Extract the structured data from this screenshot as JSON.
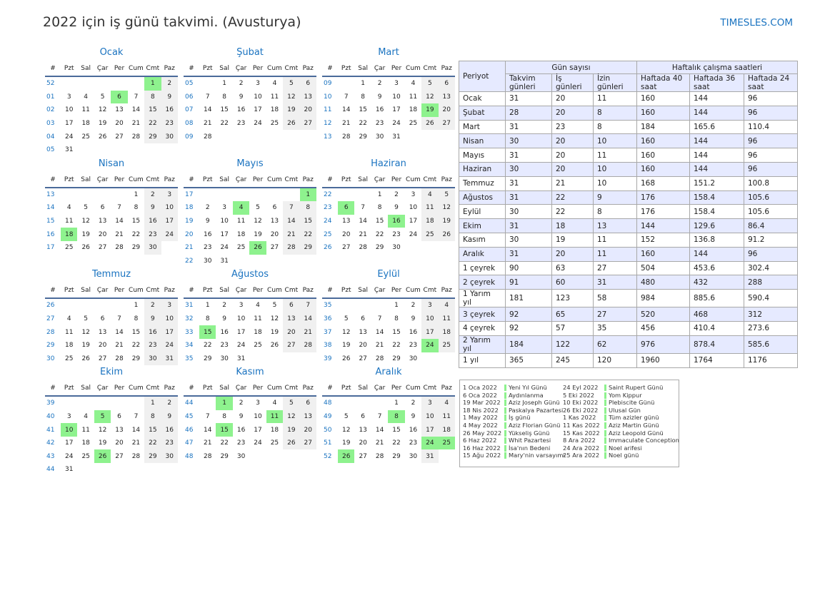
{
  "title": "2022 için iş günü takvimi. (Avusturya)",
  "site": "TIMESLES.COM",
  "colors": {
    "accent": "#1a73c0",
    "holiday": "#8ef28e",
    "weekend": "#f0f0f0",
    "table_header": "#e6eaff"
  },
  "weekday_headers": [
    "#",
    "Pzt",
    "Sal",
    "Çar",
    "Per",
    "Cum",
    "Cmt",
    "Paz"
  ],
  "months": [
    {
      "name": "Ocak",
      "holidays": [
        "1",
        "6"
      ],
      "weeks": [
        [
          "52",
          "",
          "",
          "",
          "",
          "",
          "1",
          "2"
        ],
        [
          "01",
          "3",
          "4",
          "5",
          "6",
          "7",
          "8",
          "9"
        ],
        [
          "02",
          "10",
          "11",
          "12",
          "13",
          "14",
          "15",
          "16"
        ],
        [
          "03",
          "17",
          "18",
          "19",
          "20",
          "21",
          "22",
          "23"
        ],
        [
          "04",
          "24",
          "25",
          "26",
          "27",
          "28",
          "29",
          "30"
        ],
        [
          "05",
          "31",
          "",
          "",
          "",
          "",
          "",
          ""
        ]
      ]
    },
    {
      "name": "Şubat",
      "holidays": [],
      "weeks": [
        [
          "05",
          "",
          "1",
          "2",
          "3",
          "4",
          "5",
          "6"
        ],
        [
          "06",
          "7",
          "8",
          "9",
          "10",
          "11",
          "12",
          "13"
        ],
        [
          "07",
          "14",
          "15",
          "16",
          "17",
          "18",
          "19",
          "20"
        ],
        [
          "08",
          "21",
          "22",
          "23",
          "24",
          "25",
          "26",
          "27"
        ],
        [
          "09",
          "28",
          "",
          "",
          "",
          "",
          "",
          ""
        ]
      ]
    },
    {
      "name": "Mart",
      "holidays": [
        "19"
      ],
      "weeks": [
        [
          "09",
          "",
          "1",
          "2",
          "3",
          "4",
          "5",
          "6"
        ],
        [
          "10",
          "7",
          "8",
          "9",
          "10",
          "11",
          "12",
          "13"
        ],
        [
          "11",
          "14",
          "15",
          "16",
          "17",
          "18",
          "19",
          "20"
        ],
        [
          "12",
          "21",
          "22",
          "23",
          "24",
          "25",
          "26",
          "27"
        ],
        [
          "13",
          "28",
          "29",
          "30",
          "31",
          "",
          "",
          ""
        ]
      ]
    },
    {
      "name": "Nisan",
      "holidays": [
        "18"
      ],
      "weeks": [
        [
          "13",
          "",
          "",
          "",
          "",
          "1",
          "2",
          "3"
        ],
        [
          "14",
          "4",
          "5",
          "6",
          "7",
          "8",
          "9",
          "10"
        ],
        [
          "15",
          "11",
          "12",
          "13",
          "14",
          "15",
          "16",
          "17"
        ],
        [
          "16",
          "18",
          "19",
          "20",
          "21",
          "22",
          "23",
          "24"
        ],
        [
          "17",
          "25",
          "26",
          "27",
          "28",
          "29",
          "30",
          ""
        ]
      ]
    },
    {
      "name": "Mayıs",
      "holidays": [
        "1",
        "4",
        "26"
      ],
      "weeks": [
        [
          "17",
          "",
          "",
          "",
          "",
          "",
          "",
          "1"
        ],
        [
          "18",
          "2",
          "3",
          "4",
          "5",
          "6",
          "7",
          "8"
        ],
        [
          "19",
          "9",
          "10",
          "11",
          "12",
          "13",
          "14",
          "15"
        ],
        [
          "20",
          "16",
          "17",
          "18",
          "19",
          "20",
          "21",
          "22"
        ],
        [
          "21",
          "23",
          "24",
          "25",
          "26",
          "27",
          "28",
          "29"
        ],
        [
          "22",
          "30",
          "31",
          "",
          "",
          "",
          "",
          ""
        ]
      ]
    },
    {
      "name": "Haziran",
      "holidays": [
        "6",
        "16"
      ],
      "weeks": [
        [
          "22",
          "",
          "",
          "1",
          "2",
          "3",
          "4",
          "5"
        ],
        [
          "23",
          "6",
          "7",
          "8",
          "9",
          "10",
          "11",
          "12"
        ],
        [
          "24",
          "13",
          "14",
          "15",
          "16",
          "17",
          "18",
          "19"
        ],
        [
          "25",
          "20",
          "21",
          "22",
          "23",
          "24",
          "25",
          "26"
        ],
        [
          "26",
          "27",
          "28",
          "29",
          "30",
          "",
          "",
          ""
        ]
      ]
    },
    {
      "name": "Temmuz",
      "holidays": [],
      "weeks": [
        [
          "26",
          "",
          "",
          "",
          "",
          "1",
          "2",
          "3"
        ],
        [
          "27",
          "4",
          "5",
          "6",
          "7",
          "8",
          "9",
          "10"
        ],
        [
          "28",
          "11",
          "12",
          "13",
          "14",
          "15",
          "16",
          "17"
        ],
        [
          "29",
          "18",
          "19",
          "20",
          "21",
          "22",
          "23",
          "24"
        ],
        [
          "30",
          "25",
          "26",
          "27",
          "28",
          "29",
          "30",
          "31"
        ]
      ]
    },
    {
      "name": "Ağustos",
      "holidays": [
        "15"
      ],
      "weeks": [
        [
          "31",
          "1",
          "2",
          "3",
          "4",
          "5",
          "6",
          "7"
        ],
        [
          "32",
          "8",
          "9",
          "10",
          "11",
          "12",
          "13",
          "14"
        ],
        [
          "33",
          "15",
          "16",
          "17",
          "18",
          "19",
          "20",
          "21"
        ],
        [
          "34",
          "22",
          "23",
          "24",
          "25",
          "26",
          "27",
          "28"
        ],
        [
          "35",
          "29",
          "30",
          "31",
          "",
          "",
          "",
          ""
        ]
      ]
    },
    {
      "name": "Eylül",
      "holidays": [
        "24"
      ],
      "weeks": [
        [
          "35",
          "",
          "",
          "",
          "1",
          "2",
          "3",
          "4"
        ],
        [
          "36",
          "5",
          "6",
          "7",
          "8",
          "9",
          "10",
          "11"
        ],
        [
          "37",
          "12",
          "13",
          "14",
          "15",
          "16",
          "17",
          "18"
        ],
        [
          "38",
          "19",
          "20",
          "21",
          "22",
          "23",
          "24",
          "25"
        ],
        [
          "39",
          "26",
          "27",
          "28",
          "29",
          "30",
          "",
          ""
        ]
      ]
    },
    {
      "name": "Ekim",
      "holidays": [
        "5",
        "10",
        "26"
      ],
      "weeks": [
        [
          "39",
          "",
          "",
          "",
          "",
          "",
          "1",
          "2"
        ],
        [
          "40",
          "3",
          "4",
          "5",
          "6",
          "7",
          "8",
          "9"
        ],
        [
          "41",
          "10",
          "11",
          "12",
          "13",
          "14",
          "15",
          "16"
        ],
        [
          "42",
          "17",
          "18",
          "19",
          "20",
          "21",
          "22",
          "23"
        ],
        [
          "43",
          "24",
          "25",
          "26",
          "27",
          "28",
          "29",
          "30"
        ],
        [
          "44",
          "31",
          "",
          "",
          "",
          "",
          "",
          ""
        ]
      ]
    },
    {
      "name": "Kasım",
      "holidays": [
        "1",
        "11",
        "15"
      ],
      "weeks": [
        [
          "44",
          "",
          "1",
          "2",
          "3",
          "4",
          "5",
          "6"
        ],
        [
          "45",
          "7",
          "8",
          "9",
          "10",
          "11",
          "12",
          "13"
        ],
        [
          "46",
          "14",
          "15",
          "16",
          "17",
          "18",
          "19",
          "20"
        ],
        [
          "47",
          "21",
          "22",
          "23",
          "24",
          "25",
          "26",
          "27"
        ],
        [
          "48",
          "28",
          "29",
          "30",
          "",
          "",
          "",
          ""
        ]
      ]
    },
    {
      "name": "Aralık",
      "holidays": [
        "8",
        "24",
        "25",
        "26"
      ],
      "weeks": [
        [
          "48",
          "",
          "",
          "",
          "1",
          "2",
          "3",
          "4"
        ],
        [
          "49",
          "5",
          "6",
          "7",
          "8",
          "9",
          "10",
          "11"
        ],
        [
          "50",
          "12",
          "13",
          "14",
          "15",
          "16",
          "17",
          "18"
        ],
        [
          "51",
          "19",
          "20",
          "21",
          "22",
          "23",
          "24",
          "25"
        ],
        [
          "52",
          "26",
          "27",
          "28",
          "29",
          "30",
          "31",
          ""
        ]
      ]
    }
  ],
  "stats": {
    "period_header": "Periyot",
    "group_days": "Gün sayısı",
    "group_hours": "Haftalık çalışma saatleri",
    "columns": [
      "Takvim günleri",
      "İş günleri",
      "İzin günleri",
      "Haftada 40 saat",
      "Haftada 36 saat",
      "Haftada 24 saat"
    ],
    "rows": [
      [
        "Ocak",
        "31",
        "20",
        "11",
        "160",
        "144",
        "96"
      ],
      [
        "Şubat",
        "28",
        "20",
        "8",
        "160",
        "144",
        "96"
      ],
      [
        "Mart",
        "31",
        "23",
        "8",
        "184",
        "165.6",
        "110.4"
      ],
      [
        "Nisan",
        "30",
        "20",
        "10",
        "160",
        "144",
        "96"
      ],
      [
        "Mayıs",
        "31",
        "20",
        "11",
        "160",
        "144",
        "96"
      ],
      [
        "Haziran",
        "30",
        "20",
        "10",
        "160",
        "144",
        "96"
      ],
      [
        "Temmuz",
        "31",
        "21",
        "10",
        "168",
        "151.2",
        "100.8"
      ],
      [
        "Ağustos",
        "31",
        "22",
        "9",
        "176",
        "158.4",
        "105.6"
      ],
      [
        "Eylül",
        "30",
        "22",
        "8",
        "176",
        "158.4",
        "105.6"
      ],
      [
        "Ekim",
        "31",
        "18",
        "13",
        "144",
        "129.6",
        "86.4"
      ],
      [
        "Kasım",
        "30",
        "19",
        "11",
        "152",
        "136.8",
        "91.2"
      ],
      [
        "Aralık",
        "31",
        "20",
        "11",
        "160",
        "144",
        "96"
      ],
      [
        "1 çeyrek",
        "90",
        "63",
        "27",
        "504",
        "453.6",
        "302.4"
      ],
      [
        "2 çeyrek",
        "91",
        "60",
        "31",
        "480",
        "432",
        "288"
      ],
      [
        "1 Yarım yıl",
        "181",
        "123",
        "58",
        "984",
        "885.6",
        "590.4"
      ],
      [
        "3 çeyrek",
        "92",
        "65",
        "27",
        "520",
        "468",
        "312"
      ],
      [
        "4 çeyrek",
        "92",
        "57",
        "35",
        "456",
        "410.4",
        "273.6"
      ],
      [
        "2 Yarım yıl",
        "184",
        "122",
        "62",
        "976",
        "878.4",
        "585.6"
      ],
      [
        "1 yıl",
        "365",
        "245",
        "120",
        "1960",
        "1764",
        "1176"
      ]
    ]
  },
  "holiday_list": [
    [
      [
        "1 Oca 2022",
        "Yeni Yıl Günü"
      ],
      [
        "6 Oca 2022",
        "Aydınlanma"
      ],
      [
        "19 Mar 2022",
        "Aziz Joseph Günü"
      ],
      [
        "18 Nis 2022",
        "Paskalya Pazartesi"
      ],
      [
        "1 May 2022",
        "İş günü"
      ],
      [
        "4 May 2022",
        "Aziz Florian Günü"
      ],
      [
        "26 May 2022",
        "Yükseliş Günü"
      ],
      [
        "6 Haz 2022",
        "Whit Pazartesi"
      ],
      [
        "16 Haz 2022",
        "İsa'nın Bedeni"
      ],
      [
        "15 Ağu 2022",
        "Mary'nin varsayımı"
      ]
    ],
    [
      [
        "24 Eyl 2022",
        "Saint Rupert Günü"
      ],
      [
        "5 Eki 2022",
        "Yom Kippur"
      ],
      [
        "10 Eki 2022",
        "Plebiscite Günü"
      ],
      [
        "26 Eki 2022",
        "Ulusal Gün"
      ],
      [
        "1 Kas 2022",
        "Tüm azizler günü"
      ],
      [
        "11 Kas 2022",
        "Aziz Martin Günü"
      ],
      [
        "15 Kas 2022",
        "Aziz Leopold Günü"
      ],
      [
        "8 Ara 2022",
        "Immaculate Conception"
      ],
      [
        "24 Ara 2022",
        "Noel arifesi"
      ],
      [
        "25 Ara 2022",
        "Noel günü"
      ]
    ]
  ]
}
